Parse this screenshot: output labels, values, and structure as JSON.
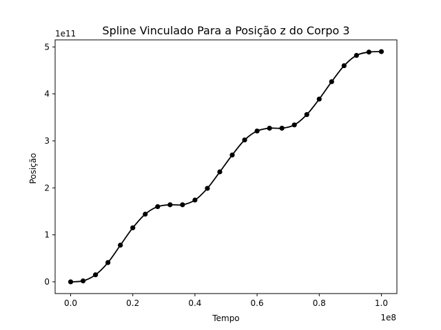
{
  "chart_data": {
    "type": "line",
    "title": "Spline Vinculado Para a Posição z do Corpo 3",
    "xlabel": "Tempo",
    "ylabel": "Posição",
    "x_offset_label": "1e8",
    "y_offset_label": "1e11",
    "xlim": [
      -0.05,
      1.05
    ],
    "ylim": [
      -0.25,
      5.15
    ],
    "x_ticks": [
      0.0,
      0.2,
      0.4,
      0.6,
      0.8,
      1.0
    ],
    "x_tick_labels": [
      "0.0",
      "0.2",
      "0.4",
      "0.6",
      "0.8",
      "1.0"
    ],
    "y_ticks": [
      0,
      1,
      2,
      3,
      4,
      5
    ],
    "y_tick_labels": [
      "0",
      "1",
      "2",
      "3",
      "4",
      "5"
    ],
    "grid": false,
    "line_color": "#000000",
    "marker": "circle",
    "x": [
      0.0,
      0.04,
      0.08,
      0.12,
      0.16,
      0.2,
      0.24,
      0.28,
      0.32,
      0.36,
      0.4,
      0.44,
      0.48,
      0.52,
      0.56,
      0.6,
      0.64,
      0.68,
      0.72,
      0.76,
      0.8,
      0.84,
      0.88,
      0.92,
      0.96,
      1.0
    ],
    "y": [
      0.0,
      0.02,
      0.15,
      0.41,
      0.78,
      1.15,
      1.44,
      1.6,
      1.64,
      1.64,
      1.74,
      1.99,
      2.34,
      2.7,
      3.02,
      3.21,
      3.27,
      3.27,
      3.34,
      3.56,
      3.89,
      4.26,
      4.6,
      4.82,
      4.89,
      4.9
    ]
  }
}
